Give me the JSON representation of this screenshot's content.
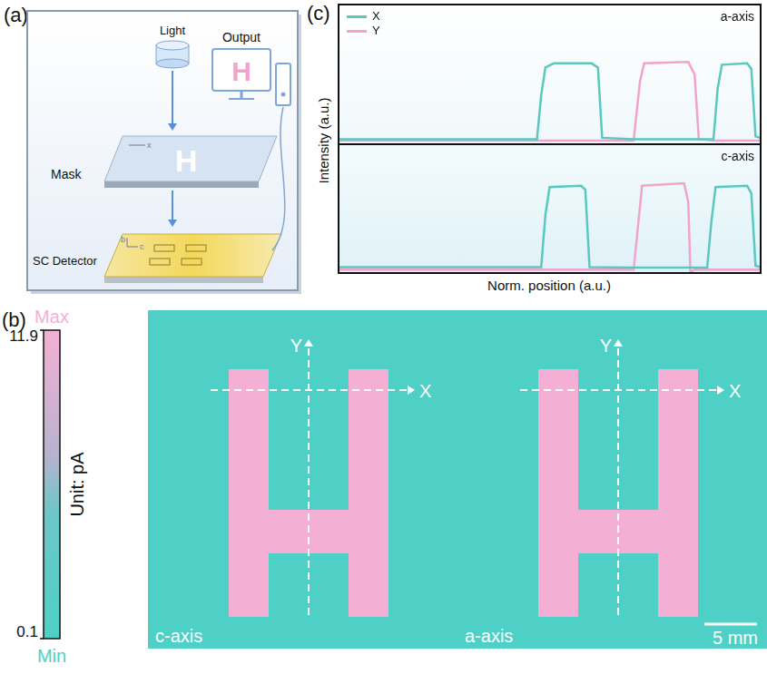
{
  "panel_a": {
    "letter": "(a)",
    "light": "Light",
    "mask": "Mask",
    "mask_pattern": "H",
    "mask_axis": "x",
    "detector": "SC Detector",
    "detector_axes": [
      "b",
      "c"
    ],
    "output": "Output",
    "output_pattern": "H"
  },
  "panel_b": {
    "letter": "(b)",
    "colorbar": {
      "title": "Unit: pA",
      "range": [
        0.1,
        11.9
      ],
      "ticks": [
        0.1,
        11.9
      ],
      "max_label": "Max",
      "min_label": "Min"
    },
    "images": [
      {
        "label": "c-axis",
        "foreground": 11.9,
        "background": 0.1
      },
      {
        "label": "a-axis",
        "foreground": 11.9,
        "background": 0.1
      }
    ],
    "scan_axes": [
      "X",
      "Y"
    ],
    "scale_bar": "5 mm"
  },
  "panel_c": {
    "letter": "(c)",
    "xlabel": "Norm. position (a.u.)",
    "ylabel": "Intensity (a.u.)"
  },
  "chart_data": [
    {
      "type": "line",
      "title": "a-axis",
      "x": [
        0,
        0.47,
        0.48,
        0.49,
        0.51,
        0.6,
        0.615,
        0.625,
        0.7,
        0.715,
        0.725,
        0.83,
        0.845,
        0.855,
        0.89,
        0.9,
        0.91,
        0.97,
        0.98,
        0.99,
        1
      ],
      "xlim": [
        0,
        1
      ],
      "ylim": [
        0,
        1
      ],
      "tick_labels": false,
      "legend": "upper left",
      "series": [
        {
          "name": "X",
          "color": "#5bc8c0",
          "values": [
            0.03,
            0.03,
            0.35,
            0.55,
            0.58,
            0.58,
            0.55,
            0.04,
            0.03,
            0.03,
            0.03,
            0.03,
            0.03,
            0.03,
            0.03,
            0.4,
            0.57,
            0.58,
            0.54,
            0.05,
            0.04
          ]
        },
        {
          "name": "Y",
          "color": "#f2a3cc",
          "values": [
            0.02,
            0.02,
            0.02,
            0.02,
            0.02,
            0.02,
            0.02,
            0.02,
            0.02,
            0.45,
            0.58,
            0.59,
            0.5,
            0.03,
            0.02,
            0.02,
            0.02,
            0.02,
            0.02,
            0.02,
            0.02
          ]
        }
      ]
    },
    {
      "type": "line",
      "title": "c-axis",
      "x": [
        0,
        0.48,
        0.49,
        0.5,
        0.575,
        0.585,
        0.595,
        0.7,
        0.71,
        0.72,
        0.82,
        0.83,
        0.835,
        0.845,
        0.875,
        0.885,
        0.895,
        0.97,
        0.98,
        0.99,
        1
      ],
      "xlim": [
        0,
        1
      ],
      "ylim": [
        0,
        1
      ],
      "tick_labels": false,
      "legend": false,
      "series": [
        {
          "name": "X",
          "color": "#5bc8c0",
          "values": [
            0.04,
            0.04,
            0.45,
            0.67,
            0.68,
            0.65,
            0.04,
            0.035,
            0.035,
            0.035,
            0.035,
            0.035,
            0.035,
            0.035,
            0.035,
            0.4,
            0.67,
            0.68,
            0.62,
            0.05,
            0.04
          ]
        },
        {
          "name": "Y",
          "color": "#f2a3cc",
          "values": [
            0.02,
            0.02,
            0.02,
            0.02,
            0.02,
            0.02,
            0.02,
            0.02,
            0.35,
            0.68,
            0.7,
            0.55,
            0.0,
            0.02,
            0.02,
            0.02,
            0.02,
            0.02,
            0.02,
            0.02,
            0.02
          ]
        }
      ]
    }
  ]
}
